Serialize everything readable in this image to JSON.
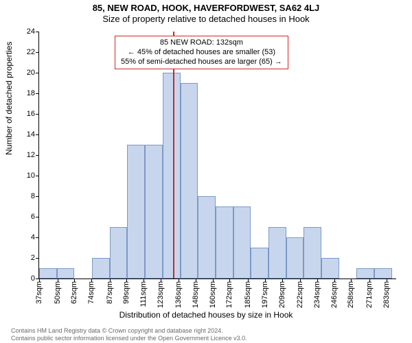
{
  "titles": {
    "main": "85, NEW ROAD, HOOK, HAVERFORDWEST, SA62 4LJ",
    "sub": "Size of property relative to detached houses in Hook"
  },
  "axes": {
    "ylabel": "Number of detached properties",
    "xlabel": "Distribution of detached houses by size in Hook",
    "ylim": [
      0,
      24
    ],
    "yticks": [
      0,
      2,
      4,
      6,
      8,
      10,
      12,
      14,
      16,
      18,
      20,
      22,
      24
    ],
    "xstart": 37,
    "xend": 290,
    "xticks": [
      37,
      50,
      62,
      74,
      87,
      99,
      111,
      123,
      136,
      148,
      160,
      172,
      185,
      197,
      209,
      222,
      234,
      246,
      258,
      271,
      283
    ],
    "xtick_fmt": "sqm",
    "label_fontsize": 12,
    "tick_fontsize": 11
  },
  "chart": {
    "type": "histogram",
    "bin_width": 12.5,
    "bar_fill": "#c7d6ed",
    "bar_border": "#7c98c6",
    "background": "#ffffff",
    "bins": [
      {
        "start": 37,
        "count": 1
      },
      {
        "start": 49.5,
        "count": 1
      },
      {
        "start": 62,
        "count": 0
      },
      {
        "start": 74.5,
        "count": 2
      },
      {
        "start": 87,
        "count": 5
      },
      {
        "start": 99.5,
        "count": 13
      },
      {
        "start": 112,
        "count": 13
      },
      {
        "start": 124.5,
        "count": 20
      },
      {
        "start": 137,
        "count": 19
      },
      {
        "start": 149.5,
        "count": 8
      },
      {
        "start": 162,
        "count": 7
      },
      {
        "start": 174.5,
        "count": 7
      },
      {
        "start": 187,
        "count": 3
      },
      {
        "start": 199.5,
        "count": 5
      },
      {
        "start": 212,
        "count": 4
      },
      {
        "start": 224.5,
        "count": 5
      },
      {
        "start": 237,
        "count": 2
      },
      {
        "start": 249.5,
        "count": 0
      },
      {
        "start": 262,
        "count": 1
      },
      {
        "start": 274.5,
        "count": 1
      }
    ]
  },
  "marker": {
    "value": 132,
    "color": "#d02424"
  },
  "annotation": {
    "border_color": "#d02424",
    "lines": {
      "l1": "85 NEW ROAD: 132sqm",
      "l2": "← 45% of detached houses are smaller (53)",
      "l3": "55% of semi-detached houses are larger (65) →"
    }
  },
  "footer": {
    "l1": "Contains HM Land Registry data © Crown copyright and database right 2024.",
    "l2": "Contains public sector information licensed under the Open Government Licence v3.0."
  }
}
